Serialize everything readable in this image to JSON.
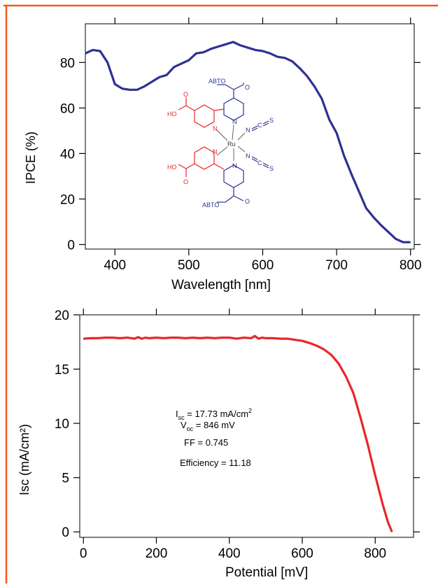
{
  "colors": {
    "border": "#f05a1a",
    "ipce_line": "#2e3192",
    "isc_line": "#e8262a",
    "mol_blue": "#2e3192",
    "mol_red": "#e8262a"
  },
  "chart_data": [
    {
      "type": "line",
      "title": "",
      "xlabel": "Wavelength [nm]",
      "ylabel": "IPCE (%)",
      "xlim": [
        360,
        805
      ],
      "ylim": [
        -2,
        97
      ],
      "xticks": [
        400,
        500,
        600,
        700,
        800
      ],
      "yticks": [
        0,
        20,
        40,
        60,
        80
      ],
      "grid": false,
      "series": [
        {
          "x": [
            360,
            370,
            380,
            390,
            400,
            410,
            420,
            430,
            440,
            450,
            460,
            470,
            480,
            490,
            500,
            510,
            520,
            530,
            540,
            550,
            560,
            570,
            580,
            590,
            600,
            610,
            620,
            630,
            640,
            650,
            660,
            670,
            680,
            690,
            700,
            710,
            720,
            730,
            740,
            750,
            760,
            770,
            780,
            790,
            800
          ],
          "values": [
            84,
            85.5,
            85,
            80,
            70.5,
            68.5,
            68,
            68,
            69.5,
            71.5,
            73.5,
            74.5,
            78,
            79.5,
            81,
            84,
            84.5,
            86,
            87,
            88,
            89,
            87.5,
            86.5,
            85.5,
            85,
            84,
            82.5,
            82,
            80.5,
            77.5,
            74,
            69.5,
            64,
            55,
            49,
            39,
            31,
            23.5,
            16,
            12,
            8.5,
            5.5,
            2.5,
            1,
            1
          ]
        }
      ]
    },
    {
      "type": "line",
      "title": "",
      "xlabel": "Potential [mV]",
      "ylabel": "Isc (mA/cm²)",
      "xlim": [
        -10,
        905
      ],
      "ylim": [
        -0.5,
        20
      ],
      "xticks": [
        0,
        200,
        400,
        600,
        800
      ],
      "yticks": [
        0,
        5,
        10,
        15,
        20
      ],
      "grid": false,
      "series": [
        {
          "x": [
            0,
            20,
            40,
            60,
            80,
            100,
            120,
            140,
            150,
            160,
            170,
            180,
            200,
            220,
            240,
            260,
            280,
            300,
            320,
            340,
            360,
            380,
            400,
            420,
            440,
            460,
            470,
            480,
            490,
            500,
            520,
            540,
            560,
            580,
            600,
            620,
            640,
            660,
            680,
            700,
            720,
            740,
            760,
            780,
            800,
            820,
            835,
            846
          ],
          "values": [
            17.8,
            17.85,
            17.85,
            17.9,
            17.9,
            17.85,
            17.9,
            17.8,
            17.95,
            17.8,
            17.9,
            17.85,
            17.9,
            17.85,
            17.9,
            17.9,
            17.85,
            17.9,
            17.85,
            17.9,
            17.85,
            17.9,
            17.9,
            17.8,
            17.9,
            17.85,
            18.05,
            17.8,
            17.9,
            17.85,
            17.85,
            17.8,
            17.8,
            17.7,
            17.6,
            17.4,
            17.15,
            16.8,
            16.3,
            15.5,
            14.3,
            12.8,
            10.5,
            8.0,
            5.2,
            2.6,
            0.9,
            0
          ]
        }
      ]
    }
  ],
  "annotations": {
    "isc_main": "I",
    "isc_sub": "sc",
    "isc_value": " = 17.73 mA/cm",
    "isc_sup": "2",
    "voc_main": "V",
    "voc_sub": "oc",
    "voc_value": " = 846 mV",
    "ff": "FF = 0.745",
    "efficiency": "Efficiency = 11.18"
  },
  "molecule": {
    "abto_top": "ABTO",
    "abto_bottom": "ABTO",
    "ho_top": "HO",
    "ho_bottom": "HO",
    "ru": "Ru",
    "ncs_1": "N",
    "ncs_2": "N",
    "c_1": "C",
    "c_2": "C",
    "s_1": "S",
    "s_2": "S",
    "n_labels": [
      "N",
      "N",
      "N",
      "N"
    ],
    "o_labels": [
      "O",
      "O",
      "O",
      "O"
    ]
  }
}
